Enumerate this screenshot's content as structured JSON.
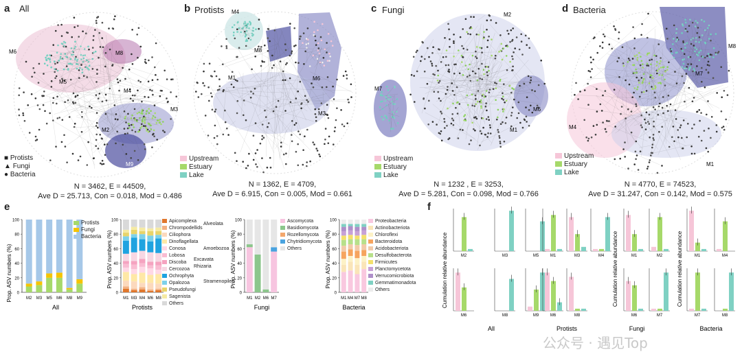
{
  "panels": {
    "a": {
      "letter": "a",
      "title": "All",
      "stat1": "N = 3462,   E = 44509,",
      "stat2": "Ave D = 25.713, Con = 0.018, Mod = 0.486",
      "legend": [
        {
          "sym": "■",
          "label": "Protists"
        },
        {
          "sym": "▲",
          "label": "Fungi"
        },
        {
          "sym": "●",
          "label": "Bacteria"
        }
      ],
      "modules": [
        "M6",
        "M8",
        "M5",
        "M4",
        "M3",
        "M2",
        "M9"
      ]
    },
    "b": {
      "letter": "b",
      "title": "Protists",
      "stat1": "N = 1362, E = 4709,",
      "stat2": "Ave D = 6.915, Con = 0.005, Mod = 0.661",
      "modules": [
        "M4",
        "M8",
        "M1",
        "M6",
        "M3"
      ]
    },
    "c": {
      "letter": "c",
      "title": "Fungi",
      "stat1": "N = 1232 , E = 3253,",
      "stat2": "Ave D = 5.281, Con = 0.098, Mod = 0.766",
      "modules": [
        "M2",
        "M7",
        "M6",
        "M1"
      ]
    },
    "d": {
      "letter": "d",
      "title": "Bacteria",
      "stat1": "N = 4770, E = 74523,",
      "stat2": "Ave D = 31.247, Con = 0.142, Mod = 0.575",
      "modules": [
        "M8",
        "M7",
        "M4",
        "M1"
      ]
    },
    "e": {
      "letter": "e"
    },
    "f": {
      "letter": "f"
    }
  },
  "habitat_legend": [
    {
      "label": "Upstream",
      "color": "#f6c6d8"
    },
    {
      "label": "Estuary",
      "color": "#a6d96a"
    },
    {
      "label": "Lake",
      "color": "#7fd1c3"
    }
  ],
  "colors": {
    "protists": "#a6d96a",
    "fungi": "#f5c400",
    "bacteria": "#a6c8e8",
    "upstream": "#f6c6d8",
    "estuary": "#a6d96a",
    "lake": "#7fd1c3",
    "module_blue": "#7d7fc0",
    "module_pink": "#e9b9cf"
  },
  "chart_data": [
    {
      "type": "bar",
      "id": "e-all",
      "xlabel": "All",
      "ylabel": "Prop. ASV numbers (%)",
      "ylim": [
        0,
        100
      ],
      "categories": [
        "M2",
        "M3",
        "M5",
        "M6",
        "M8",
        "M9"
      ],
      "series": [
        {
          "name": "Protists",
          "values": [
            8,
            10,
            20,
            20,
            4,
            12
          ]
        },
        {
          "name": "Fungi",
          "values": [
            4,
            5,
            6,
            7,
            2,
            6
          ]
        },
        {
          "name": "Bacteria",
          "values": [
            88,
            85,
            74,
            73,
            94,
            82
          ]
        }
      ]
    },
    {
      "type": "bar",
      "id": "e-protists",
      "xlabel": "Protists",
      "ylabel": "Prop. ASV numbers (%)",
      "ylim": [
        0,
        100
      ],
      "categories": [
        "M1",
        "M3",
        "M4",
        "M6",
        "M8"
      ],
      "legend": [
        "Apicomplexa",
        "Chrompodellids",
        "Ciliophora",
        "Dinoflagellata",
        "Conosa",
        "Lobosa",
        "Discoba",
        "Cercozoa",
        "Ochrophyta",
        "Opalozoa",
        "Pseudofungi",
        "Sagenista",
        "Others"
      ],
      "groups": [
        {
          "label": "Alveolata"
        },
        {
          "label": "Amoebozoa"
        },
        {
          "label": "Excavata"
        },
        {
          "label": "Rhizaria"
        },
        {
          "label": "Stramenopiles"
        }
      ]
    },
    {
      "type": "bar",
      "id": "e-fungi",
      "xlabel": "Fungi",
      "ylabel": "Prop. ASV numbers (%)",
      "ylim": [
        0,
        100
      ],
      "categories": [
        "M1",
        "M2",
        "M6",
        "M7"
      ],
      "legend": [
        "Ascomycota",
        "Basidiomycota",
        "Rozellomycota",
        "Chytridiomycota",
        "Others"
      ]
    },
    {
      "type": "bar",
      "id": "e-bacteria",
      "xlabel": "Bacteria",
      "ylabel": "Prop. ASV numbers (%)",
      "ylim": [
        0,
        100
      ],
      "categories": [
        "M1",
        "M4",
        "M7",
        "M8"
      ],
      "legend": [
        "Proteobacteria",
        "Actinobacteriota",
        "Chloroflexi",
        "Bacteroidota",
        "Acidobacteriota",
        "Desulfobacterota",
        "Firmicutes",
        "Planctomycetota",
        "Verrucomicrobiota",
        "Gemmatimonadota",
        "Others"
      ]
    },
    {
      "type": "bar",
      "id": "f",
      "ylabel": "Cumulation relative abundance",
      "groups": [
        "All",
        "Protists",
        "Fungi",
        "Bacteria"
      ],
      "note": "small-multiple bar charts per module: Upstream / Estuary / Lake"
    }
  ],
  "watermark": "公众号 · 遇见Top"
}
